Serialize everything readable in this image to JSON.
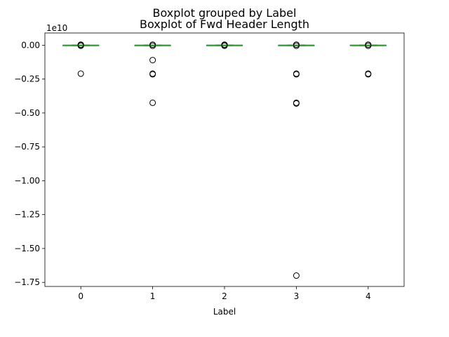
{
  "chart_data": {
    "type": "boxplot",
    "suptitle": "Boxplot grouped by Label",
    "title": "Boxplot of Fwd Header Length",
    "xlabel": "Label",
    "ylabel": "",
    "offset_text": "1e10",
    "scale": 10000000000,
    "categories": [
      "0",
      "1",
      "2",
      "3",
      "4"
    ],
    "ylim": [
      -1.78,
      0.09
    ],
    "yticks": [
      0.0,
      -0.25,
      -0.5,
      -0.75,
      -1.0,
      -1.25,
      -1.5,
      -1.75
    ],
    "ytick_labels": [
      "0.00",
      "−0.25",
      "−0.50",
      "−0.75",
      "−1.00",
      "−1.25",
      "−1.50",
      "−1.75"
    ],
    "grid": false,
    "median_color": "#2ca02c",
    "box_color": "#1f77b4",
    "boxes": [
      {
        "category": "0",
        "whisker_low": -0.002,
        "q1": -0.0005,
        "median": 0.0,
        "q3": 0.0005,
        "whisker_high": 0.002,
        "outliers": [
          0.004,
          0.002,
          -0.004,
          -0.21
        ]
      },
      {
        "category": "1",
        "whisker_low": -0.002,
        "q1": -0.0005,
        "median": 0.0,
        "q3": 0.0005,
        "whisker_high": 0.002,
        "outliers": [
          0.004,
          -0.004,
          -0.11,
          -0.21,
          -0.215,
          -0.425
        ]
      },
      {
        "category": "2",
        "whisker_low": -0.002,
        "q1": -0.0005,
        "median": 0.0,
        "q3": 0.0005,
        "whisker_high": 0.002,
        "outliers": [
          0.004,
          0.002,
          -0.004
        ]
      },
      {
        "category": "3",
        "whisker_low": -0.002,
        "q1": -0.0005,
        "median": 0.0,
        "q3": 0.0005,
        "whisker_high": 0.002,
        "outliers": [
          0.004,
          -0.004,
          -0.21,
          -0.215,
          -0.425,
          -0.43,
          -1.7
        ]
      },
      {
        "category": "4",
        "whisker_low": -0.002,
        "q1": -0.0005,
        "median": 0.0,
        "q3": 0.0005,
        "whisker_high": 0.002,
        "outliers": [
          0.004,
          -0.004,
          -0.21,
          -0.215
        ]
      }
    ]
  }
}
